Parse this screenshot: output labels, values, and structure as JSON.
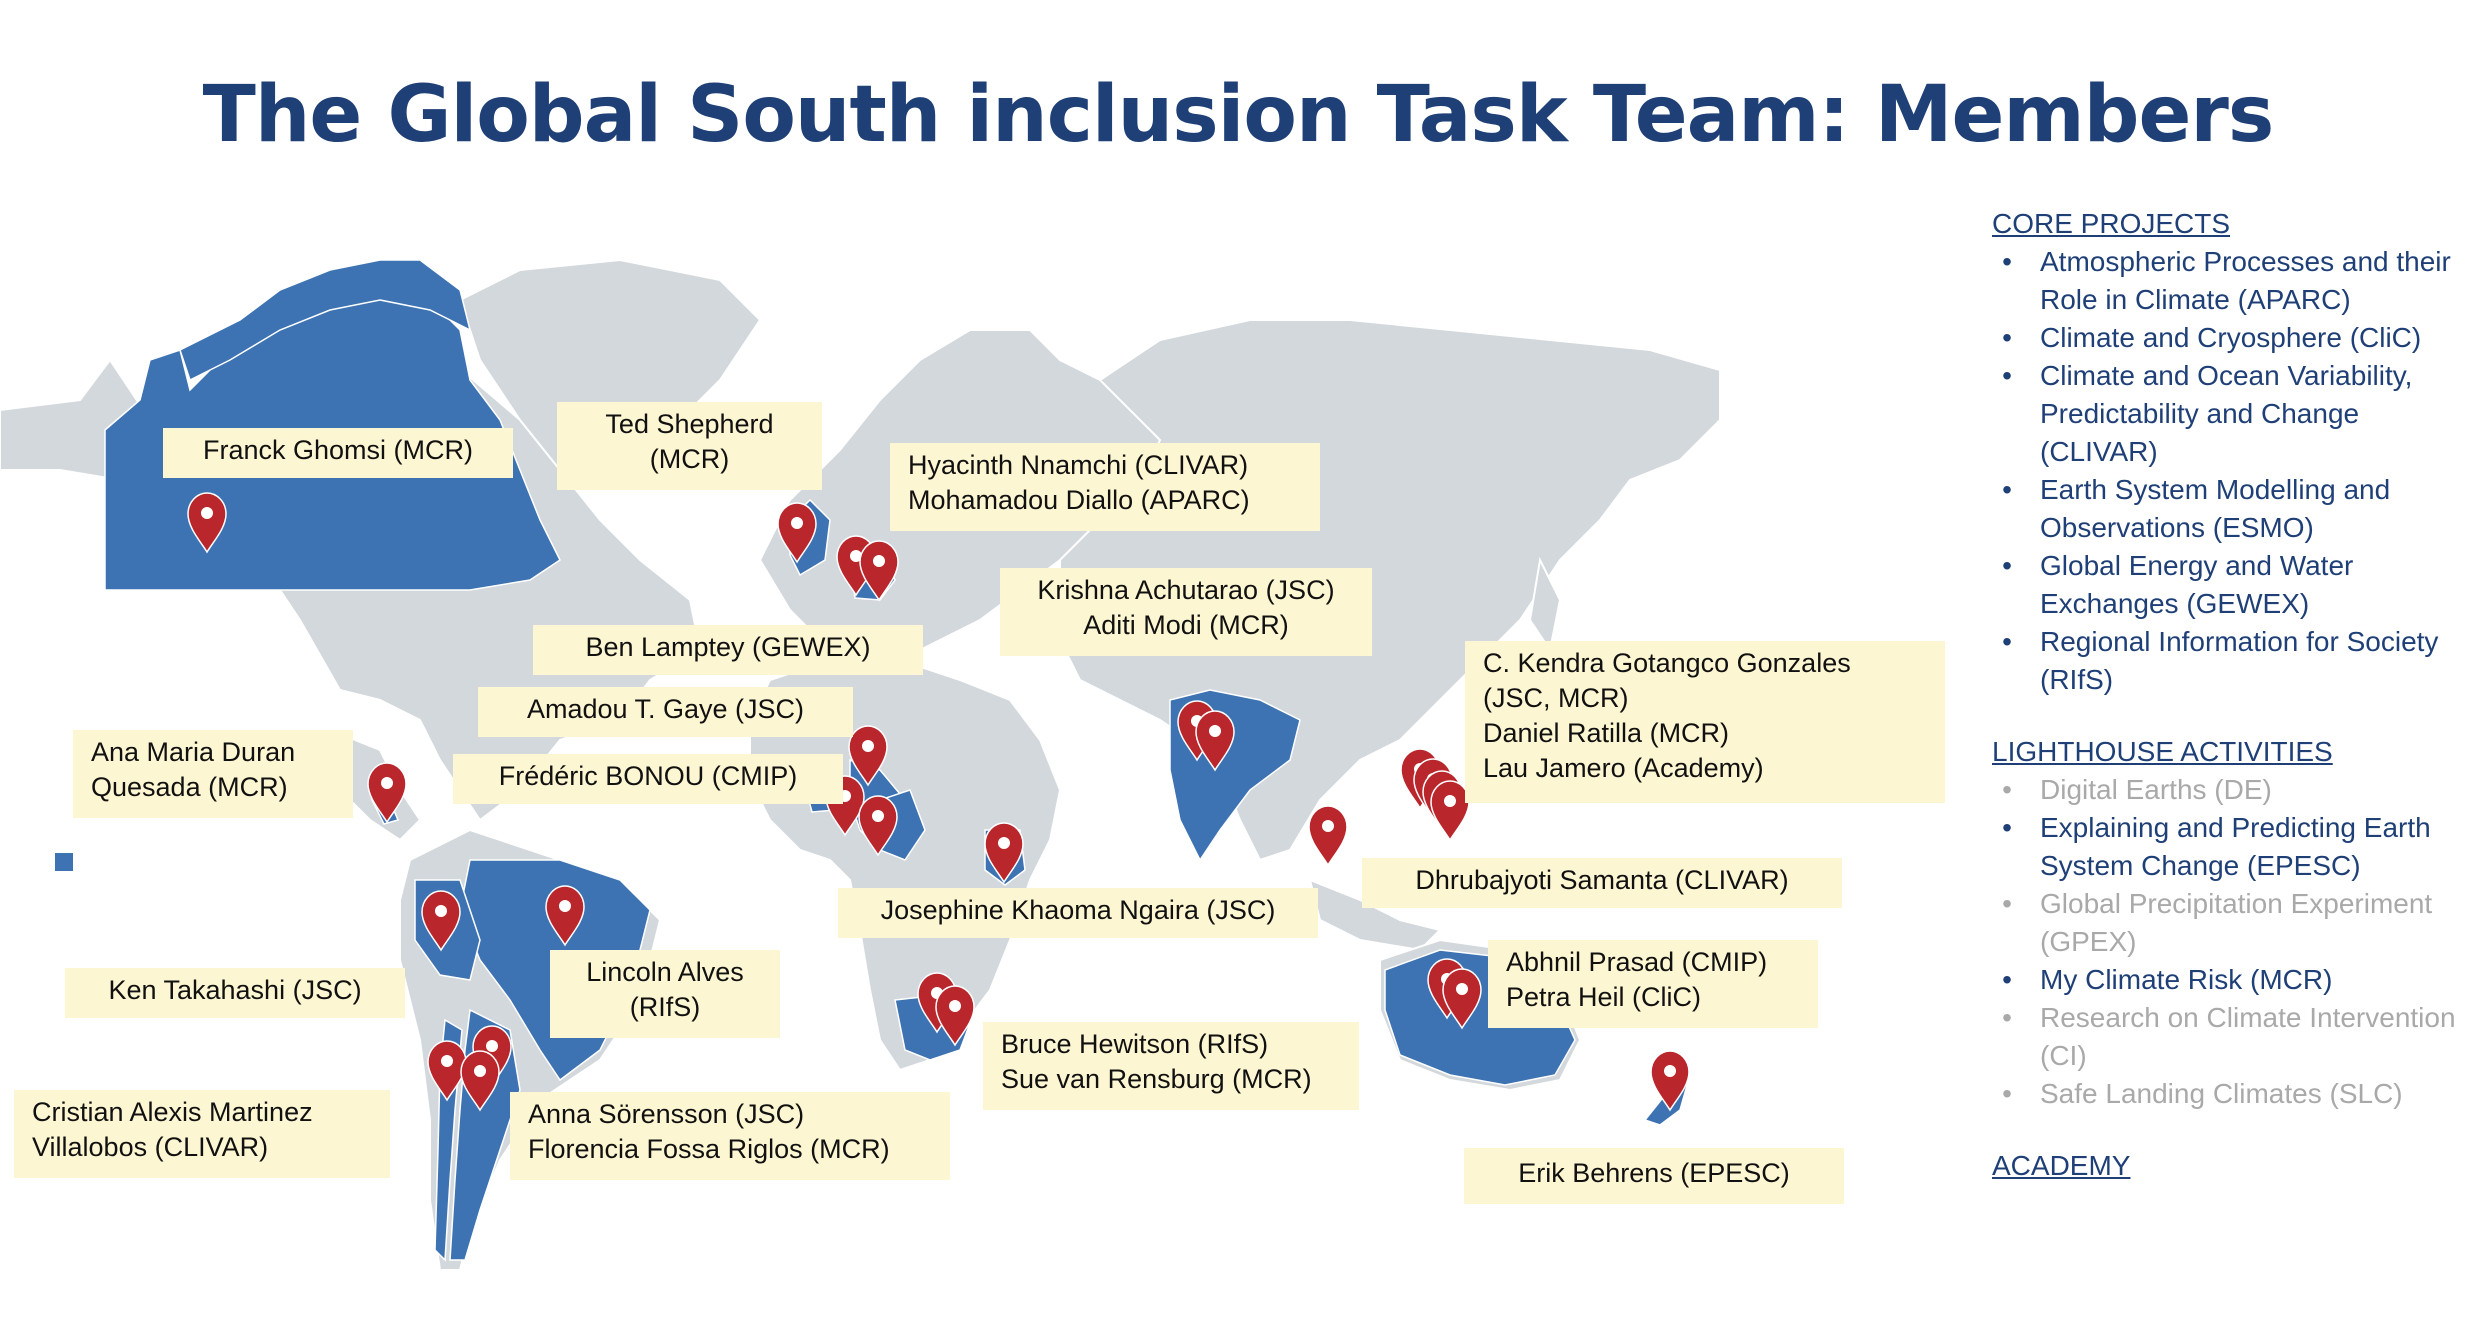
{
  "title": "The Global South inclusion Task Team: Members",
  "colors": {
    "title": "#1f3f77",
    "land": "#d3d8dd",
    "member_country": "#3d73b2",
    "pin": "#b9262b",
    "label_bg": "#fdf6d2",
    "inactive": "#a9a9a9"
  },
  "labels": [
    {
      "id": "ghomsi",
      "lines": [
        "Franck Ghomsi (MCR)"
      ]
    },
    {
      "id": "shepherd",
      "lines": [
        "Ted Shepherd",
        "(MCR)"
      ]
    },
    {
      "id": "nnamchi",
      "lines": [
        "Hyacinth Nnamchi (CLIVAR)",
        "Mohamadou Diallo (APARC)"
      ]
    },
    {
      "id": "achutarao",
      "lines": [
        "Krishna Achutarao (JSC)",
        "Aditi Modi (MCR)"
      ]
    },
    {
      "id": "lamptey",
      "lines": [
        "Ben Lamptey (GEWEX)"
      ]
    },
    {
      "id": "gaye",
      "lines": [
        "Amadou T. Gaye (JSC)"
      ]
    },
    {
      "id": "bonou",
      "lines": [
        "Frédéric BONOU (CMIP)"
      ]
    },
    {
      "id": "duran",
      "lines": [
        "Ana Maria Duran",
        "Quesada (MCR)"
      ]
    },
    {
      "id": "gonzales",
      "lines": [
        "C. Kendra Gotangco Gonzales",
        "(JSC, MCR)",
        "Daniel Ratilla (MCR)",
        " Lau Jamero (Academy)"
      ]
    },
    {
      "id": "samanta",
      "lines": [
        "Dhrubajyoti Samanta (CLIVAR)"
      ]
    },
    {
      "id": "ngaira",
      "lines": [
        "Josephine Khaoma Ngaira (JSC)"
      ]
    },
    {
      "id": "takahashi",
      "lines": [
        "Ken Takahashi  (JSC)"
      ]
    },
    {
      "id": "alves",
      "lines": [
        "Lincoln Alves",
        "(RIfS)"
      ]
    },
    {
      "id": "prasad",
      "lines": [
        "Abhnil Prasad (CMIP)",
        "Petra Heil (CliC)"
      ]
    },
    {
      "id": "hewitson",
      "lines": [
        "Bruce Hewitson (RIfS)",
        "Sue van Rensburg (MCR)"
      ]
    },
    {
      "id": "martinez",
      "lines": [
        "Cristian Alexis Martinez",
        "Villalobos (CLIVAR)"
      ]
    },
    {
      "id": "sorensson",
      "lines": [
        "Anna Sörensson (JSC)",
        "Florencia Fossa Riglos (MCR)"
      ]
    },
    {
      "id": "behrens",
      "lines": [
        "Erik Behrens (EPESC)"
      ]
    }
  ],
  "sidebar": {
    "core_projects": {
      "heading": "CORE  PROJECTS",
      "items": [
        {
          "text": "Atmospheric Processes and their Role in Climate (APARC)",
          "active": true
        },
        {
          "text": "Climate and Cryosphere (CliC)",
          "active": true
        },
        {
          "text": "Climate and Ocean Variability, Predictability and Change (CLIVAR)",
          "active": true
        },
        {
          "text": "Earth System Modelling and Observations (ESMO)",
          "active": true
        },
        {
          "text": "Global Energy and Water Exchanges (GEWEX)",
          "active": true
        },
        {
          "text": "Regional Information for Society (RIfS)",
          "active": true
        }
      ]
    },
    "lighthouse_activities": {
      "heading": "LIGHTHOUSE ACTIVITIES",
      "items": [
        {
          "text": "Digital Earths (DE)",
          "active": false
        },
        {
          "text": "Explaining and Predicting Earth System Change (EPESC)",
          "active": true
        },
        {
          "text": "Global Precipitation Experiment (GPEX)",
          "active": false
        },
        {
          "text": "My Climate Risk (MCR)",
          "active": true
        },
        {
          "text": "Research on Climate Intervention (CI)",
          "active": false
        },
        {
          "text": "Safe Landing Climates (SLC)",
          "active": false
        }
      ]
    },
    "academy": {
      "heading": "ACADEMY"
    }
  },
  "bullet_char": "•"
}
